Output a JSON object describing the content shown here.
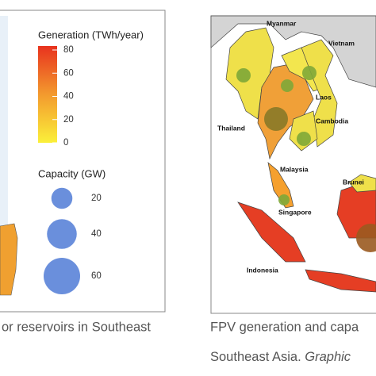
{
  "legend": {
    "generation": {
      "title": "Generation (TWh/year)",
      "ticks": [
        80,
        60,
        40,
        20,
        0
      ]
    },
    "capacity": {
      "title": "Capacity (GW)",
      "sizes": [
        20,
        40,
        60
      ]
    }
  },
  "map_labels": [
    "Myanmar",
    "Vietnam",
    "Laos",
    "Thailand",
    "Cambodia",
    "Malaysia",
    "Brunei",
    "Singapore",
    "Indonesia"
  ],
  "captions": {
    "left": "or reservoirs in Southeast",
    "right_line1": "FPV generation and capa",
    "right_line2": "Southeast Asia.",
    "right_line2_italic": "Graphic"
  }
}
